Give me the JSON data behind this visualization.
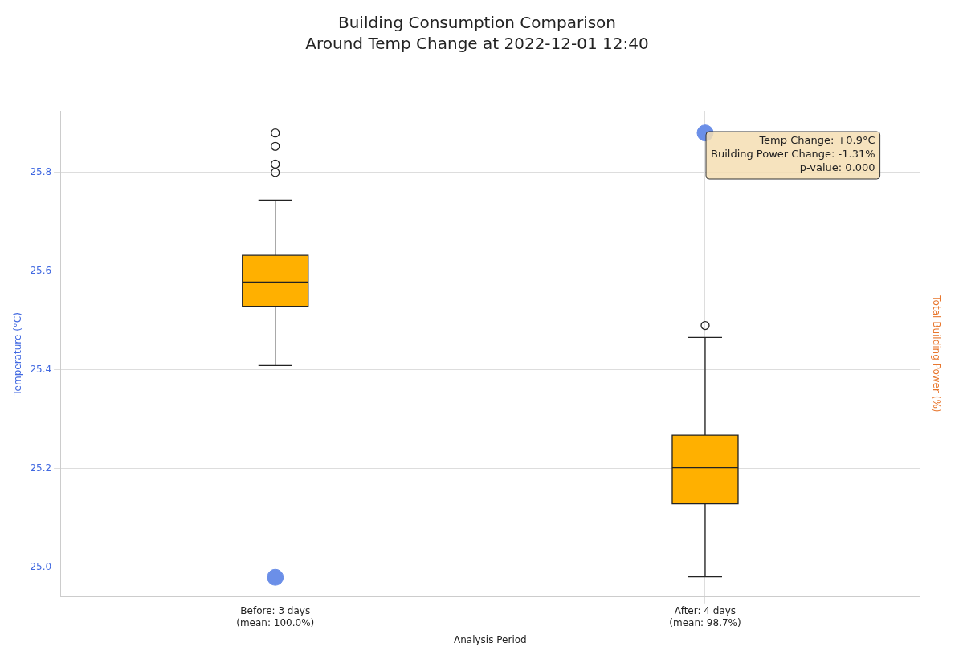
{
  "chart_data": {
    "type": "box",
    "title": "Building Consumption Comparison",
    "subtitle": "Around Temp Change at 2022-12-01 12:40",
    "xlabel": "Analysis Period",
    "ylabel": "Temperature (°C)",
    "y2label": "Total Building Power (%)",
    "categories": [
      "Before: 3 days\n(mean: 100.0%)",
      "After: 4 days\n(mean: 98.7%)"
    ],
    "series": [
      {
        "color": "#ffb000",
        "boxes": [
          {
            "low": 25.409,
            "q1": 25.529,
            "median": 25.578,
            "q3": 25.632,
            "high": 25.744,
            "outliers": [
              25.88,
              25.853,
              25.817,
              25.8
            ]
          },
          {
            "low": 24.981,
            "q1": 25.129,
            "median": 25.202,
            "q3": 25.268,
            "high": 25.466,
            "outliers": [
              25.49
            ]
          }
        ]
      },
      {
        "type": "scatter",
        "color": "#6b8fe8",
        "x": [
          "Before: 3 days\n(mean: 100.0%)",
          "After: 4 days\n(mean: 98.7%)"
        ],
        "values": [
          24.98,
          25.88
        ]
      }
    ],
    "ylim": [
      24.94,
      25.925
    ],
    "yticks": [
      {
        "value": 25,
        "label": "25.0"
      },
      {
        "value": 25.2,
        "label": "25.2"
      },
      {
        "value": 25.4,
        "label": "25.4"
      },
      {
        "value": 25.6,
        "label": "25.6"
      },
      {
        "value": 25.8,
        "label": "25.8"
      }
    ],
    "grid": true,
    "marker": "circle",
    "annotations": [
      "Temp Change: +0.9°C\nBuilding Power Change: -1.31%\np-value: 0.000"
    ]
  }
}
